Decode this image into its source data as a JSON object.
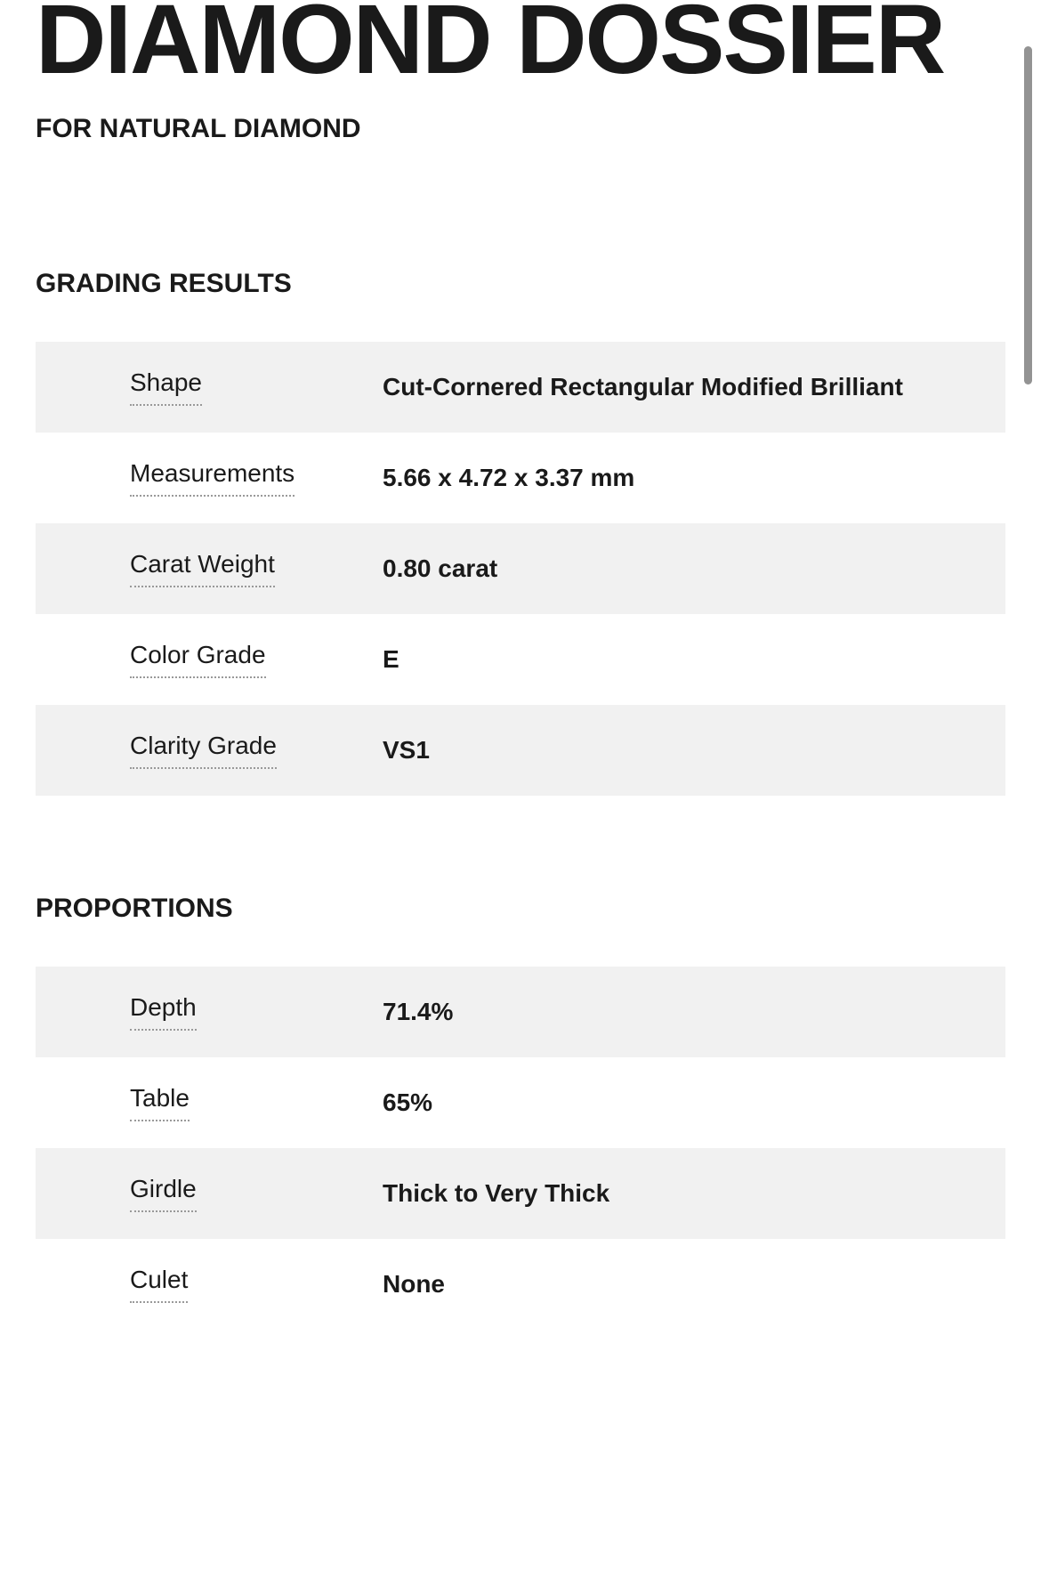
{
  "header": {
    "title": "DIAMOND DOSSIER",
    "subtitle": "FOR NATURAL DIAMOND"
  },
  "sections": {
    "grading": {
      "title": "GRADING RESULTS",
      "rows": [
        {
          "label": "Shape",
          "value": "Cut-Cornered Rectangular Modified Brilliant"
        },
        {
          "label": "Measurements",
          "value": "5.66 x 4.72 x 3.37 mm"
        },
        {
          "label": "Carat Weight",
          "value": "0.80 carat"
        },
        {
          "label": "Color Grade",
          "value": "E"
        },
        {
          "label": "Clarity Grade",
          "value": "VS1"
        }
      ]
    },
    "proportions": {
      "title": "PROPORTIONS",
      "rows": [
        {
          "label": "Depth",
          "value": "71.4%"
        },
        {
          "label": "Table",
          "value": "65%"
        },
        {
          "label": "Girdle",
          "value": "Thick to Very Thick"
        },
        {
          "label": "Culet",
          "value": "None"
        }
      ]
    }
  },
  "styling": {
    "background_color": "#ffffff",
    "row_alt_color": "#f1f1f1",
    "text_color": "#1a1a1a",
    "dotted_underline_color": "#999999",
    "scrollbar_color": "#939393",
    "title_fontsize": 110,
    "subtitle_fontsize": 30,
    "section_title_fontsize": 30,
    "label_fontsize": 28,
    "value_fontsize": 28,
    "label_fontweight": 400,
    "value_fontweight": 700,
    "section_fontweight": 800
  }
}
